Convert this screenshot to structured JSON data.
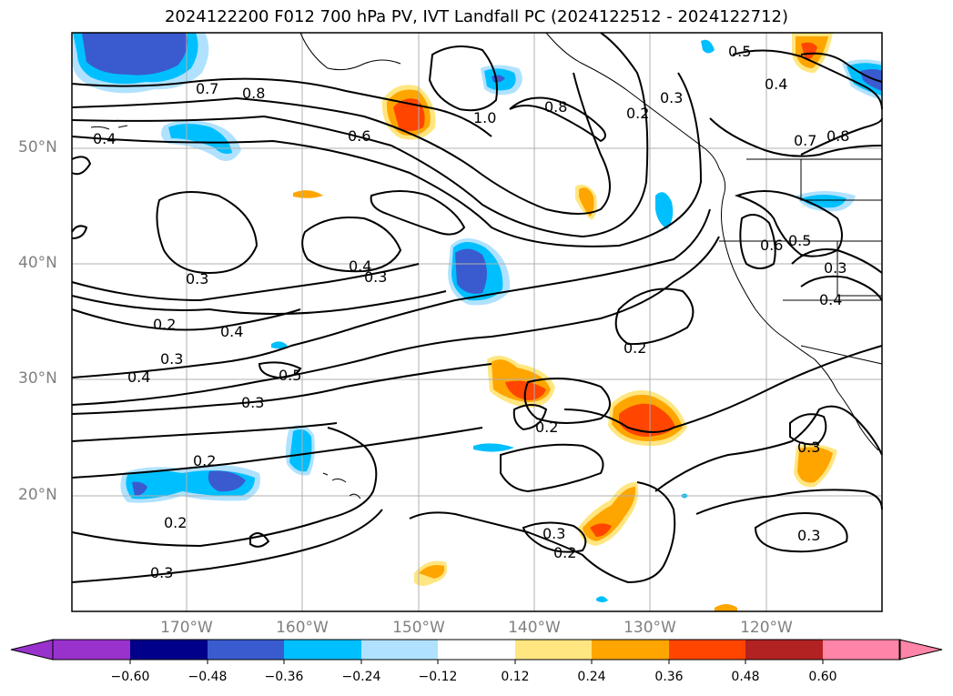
{
  "title": "2024122200 F012 700 hPa PV, IVT Landfall PC (2024122512 - 2024122712)",
  "lat_labels": [
    "50°N",
    "40°N",
    "30°N",
    "20°N"
  ],
  "lon_labels": [
    "170°W",
    "160°W",
    "150°W",
    "140°W",
    "130°W",
    "120°W"
  ],
  "colorbar": {
    "ticks": [
      "−0.60",
      "−0.48",
      "−0.36",
      "−0.24",
      "−0.12",
      "0.12",
      "0.24",
      "0.36",
      "0.48",
      "0.60"
    ],
    "colors": [
      "#9932cc",
      "#00008b",
      "#3a5bd0",
      "#00bfff",
      "#b0e2ff",
      "#ffffff",
      "#ffe680",
      "#ffa500",
      "#ff4500",
      "#b22222",
      "#ff85a8"
    ]
  },
  "contour_labels": {
    "c1": "0.7",
    "c2": "0.8",
    "c3": "0.4",
    "c4": "0.6",
    "c5": "1.0",
    "c6": "0.8",
    "c7": "0.3",
    "c8": "0.5",
    "c9": "0.4",
    "c10": "0.8",
    "c11": "0.7",
    "c12": "0.4",
    "c13": "0.3",
    "c14": "0.3",
    "c15": "0.2",
    "c16": "0.4",
    "c17": "0.3",
    "c18": "0.4",
    "c19": "0.5",
    "c20": "0.3",
    "c21": "0.2",
    "c22": "0.2",
    "c23": "0.2",
    "c24": "0.3",
    "c25": "0.2",
    "c26": "0.3",
    "c27": "0.3",
    "c28": "0.3",
    "c29": "0.6",
    "c30": "0.5",
    "c31": "0.3",
    "c32": "0.4",
    "c33": "0.2",
    "c34": "0.2"
  }
}
